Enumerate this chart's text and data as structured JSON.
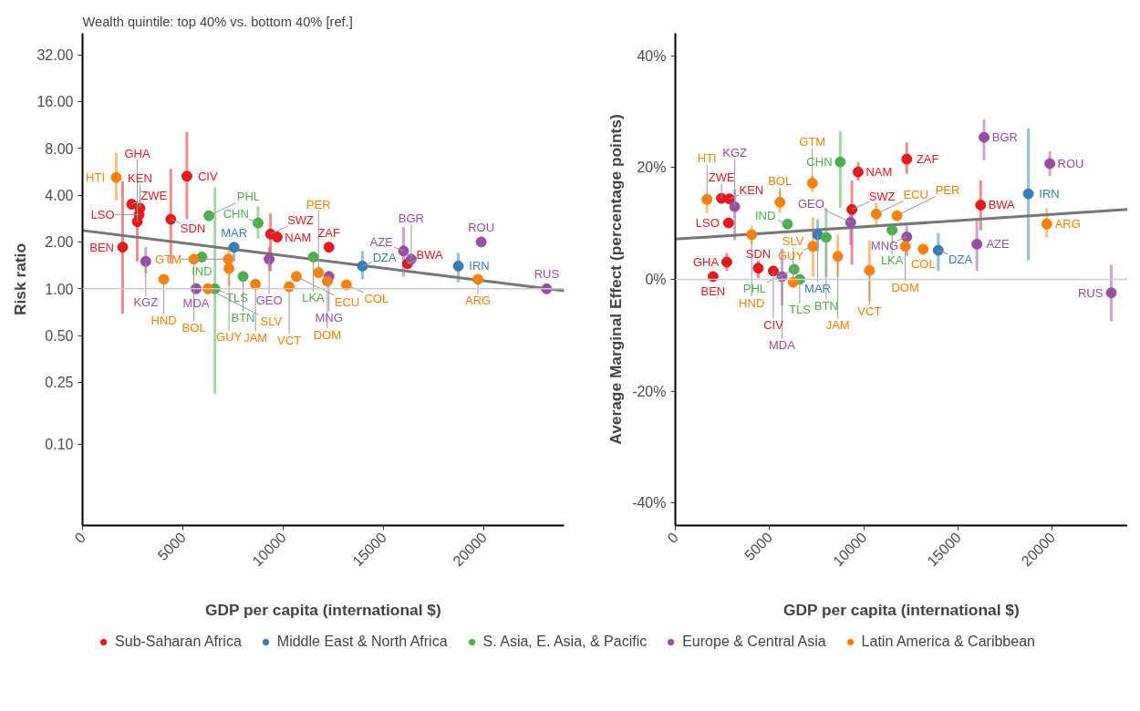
{
  "chart_data": [
    {
      "type": "scatter",
      "title": "Wealth quintile: top 40% vs. bottom 40% [ref.]",
      "xlabel": "GDP per capita (international $)",
      "ylabel": "Risk ratio",
      "log": "y",
      "marker": "circle",
      "legend": "bottom",
      "xlim": [
        0,
        24000
      ],
      "xticks": [
        0,
        5000,
        10000,
        15000,
        20000
      ],
      "ylim": [
        0.03,
        44
      ],
      "yticks": [
        {
          "value": 0.1,
          "label": "0.10"
        },
        {
          "value": 0.25,
          "label": "0.25"
        },
        {
          "value": 0.5,
          "label": "0.50"
        },
        {
          "value": 1,
          "label": "1.00"
        },
        {
          "value": 2,
          "label": "2.00"
        },
        {
          "value": 4,
          "label": "4.00"
        },
        {
          "value": 8,
          "label": "8.00"
        },
        {
          "value": 16,
          "label": "16.00"
        },
        {
          "value": 32,
          "label": "32.00"
        }
      ],
      "ref_lines": [
        {
          "axis": "y",
          "value": 1,
          "color": "#cccccc"
        }
      ],
      "series": [
        {
          "name": "Sub-Saharan Africa",
          "color": "#e41a1c",
          "x": [
            2450,
            2860,
            2820,
            2730,
            4400,
            2000,
            5200,
            9700,
            9370,
            12280,
            16200
          ],
          "values": [
            3.5,
            3.3,
            3.0,
            2.7,
            2.8,
            1.85,
            5.3,
            2.15,
            2.25,
            1.85,
            1.45
          ],
          "errors": [
            null,
            null,
            null,
            [
              1.5,
              3.5
            ],
            [
              1.45,
              5.9
            ],
            [
              0.69,
              4.9
            ],
            [
              2.8,
              10.2
            ],
            null,
            [
              1.3,
              3.05
            ],
            null,
            null
          ]
        },
        {
          "name": "Middle East & North Africa",
          "color": "#377eb8",
          "x": [
            7550,
            13950,
            18730
          ],
          "values": [
            1.85,
            1.4,
            1.4
          ],
          "errors": [
            [
              1.5,
              1.95
            ],
            [
              1.15,
              1.75
            ],
            [
              1.1,
              1.7
            ]
          ]
        },
        {
          "name": "S. Asia, E. Asia, & Pacific",
          "color": "#4daf4a",
          "x": [
            8750,
            6300,
            5950,
            6600,
            8000,
            11500
          ],
          "values": [
            2.65,
            2.95,
            1.6,
            1.0,
            1.2,
            1.6
          ],
          "errors": [
            [
              2.1,
              3.4
            ],
            null,
            null,
            [
              0.21,
              4.5
            ],
            null,
            null
          ]
        },
        {
          "name": "Europe & Central Asia",
          "color": "#984ea3",
          "x": [
            3150,
            5660,
            9300,
            12280,
            16000,
            16380,
            19870,
            23130
          ],
          "values": [
            1.5,
            1.0,
            1.55,
            1.2,
            1.75,
            1.55,
            2.0,
            1.0
          ],
          "errors": [
            [
              1.25,
              1.85
            ],
            null,
            [
              1.3,
              1.85
            ],
            null,
            [
              1.2,
              2.5
            ],
            null,
            null,
            null
          ]
        },
        {
          "name": "Latin America & Caribbean",
          "color": "#ff7f00",
          "x": [
            1680,
            5550,
            4050,
            6250,
            7270,
            7300,
            8620,
            10300,
            10660,
            11760,
            12200,
            13150,
            19710
          ],
          "values": [
            5.2,
            1.55,
            1.15,
            1.0,
            1.55,
            1.35,
            1.07,
            1.03,
            1.2,
            1.27,
            1.12,
            1.06,
            1.15
          ],
          "errors": [
            [
              3.7,
              7.5
            ],
            null,
            null,
            null,
            null,
            [
              1.05,
              1.9
            ],
            null,
            null,
            null,
            null,
            null,
            null,
            null
          ]
        },
        {
          "type": "line",
          "color": "#777777",
          "marker": "none",
          "x": [
            0,
            24000
          ],
          "values": [
            2.37,
            0.97
          ]
        }
      ],
      "annotations": [
        {
          "text": "ZWE",
          "x": 2450,
          "y": 3.5
        },
        {
          "text": "KEN",
          "x": 2860,
          "y": 3.3
        },
        {
          "text": "LSO",
          "x": 2820,
          "y": 3.0
        },
        {
          "text": "GHA",
          "x": 2730,
          "y": 2.7
        },
        {
          "text": "SDN",
          "x": 4400,
          "y": 2.8
        },
        {
          "text": "BEN",
          "x": 2000,
          "y": 1.85
        },
        {
          "text": "CIV",
          "x": 5200,
          "y": 5.3
        },
        {
          "text": "NAM",
          "x": 9700,
          "y": 2.15
        },
        {
          "text": "SWZ",
          "x": 9370,
          "y": 2.25
        },
        {
          "text": "ZAF",
          "x": 12280,
          "y": 1.85
        },
        {
          "text": "BWA",
          "x": 16200,
          "y": 1.45
        },
        {
          "text": "MAR",
          "x": 7550,
          "y": 1.85
        },
        {
          "text": "DZA",
          "x": 13950,
          "y": 1.4
        },
        {
          "text": "IRN",
          "x": 18730,
          "y": 1.4
        },
        {
          "text": "CHN",
          "x": 8750,
          "y": 2.65
        },
        {
          "text": "PHL",
          "x": 6300,
          "y": 2.95
        },
        {
          "text": "IND",
          "x": 5950,
          "y": 1.6
        },
        {
          "text": "TLS",
          "x": 6600,
          "y": 1.0
        },
        {
          "text": "BTN",
          "x": 8000,
          "y": 1.2
        },
        {
          "text": "LKA",
          "x": 11500,
          "y": 1.6
        },
        {
          "text": "KGZ",
          "x": 3150,
          "y": 1.5
        },
        {
          "text": "MDA",
          "x": 5660,
          "y": 1.0
        },
        {
          "text": "GEO",
          "x": 9300,
          "y": 1.55
        },
        {
          "text": "MNG",
          "x": 12280,
          "y": 1.2
        },
        {
          "text": "AZE",
          "x": 16000,
          "y": 1.75
        },
        {
          "text": "BGR",
          "x": 16380,
          "y": 1.55
        },
        {
          "text": "ROU",
          "x": 19870,
          "y": 2.0
        },
        {
          "text": "RUS",
          "x": 23130,
          "y": 1.0
        },
        {
          "text": "HTI",
          "x": 1680,
          "y": 5.2
        },
        {
          "text": "BOL",
          "x": 5550,
          "y": 1.55
        },
        {
          "text": "HND",
          "x": 4050,
          "y": 1.15
        },
        {
          "text": "SLV",
          "x": 6250,
          "y": 1.0
        },
        {
          "text": "GTM",
          "x": 7270,
          "y": 1.55
        },
        {
          "text": "GUY",
          "x": 7300,
          "y": 1.35
        },
        {
          "text": "JAM",
          "x": 8620,
          "y": 1.07
        },
        {
          "text": "VCT",
          "x": 10300,
          "y": 1.03
        },
        {
          "text": "ECU",
          "x": 10660,
          "y": 1.2
        },
        {
          "text": "PER",
          "x": 11760,
          "y": 1.27
        },
        {
          "text": "DOM",
          "x": 12200,
          "y": 1.12
        },
        {
          "text": "COL",
          "x": 13150,
          "y": 1.06
        },
        {
          "text": "ARG",
          "x": 19710,
          "y": 1.15
        }
      ]
    },
    {
      "type": "scatter",
      "xlabel": "GDP per capita (international $)",
      "ylabel": "Average Marginal Effect (percentage points)",
      "marker": "circle",
      "xlim": [
        0,
        24000
      ],
      "xticks": [
        0,
        5000,
        10000,
        15000,
        20000
      ],
      "ylim": [
        -44,
        44
      ],
      "yticks": [
        {
          "value": -40,
          "label": "-40%"
        },
        {
          "value": -20,
          "label": "-20%"
        },
        {
          "value": 0,
          "label": "0%"
        },
        {
          "value": 20,
          "label": "20%"
        },
        {
          "value": 40,
          "label": "40%"
        }
      ],
      "ref_lines": [
        {
          "axis": "y",
          "value": 0,
          "color": "#cccccc"
        }
      ],
      "series": [
        {
          "color": "#e41a1c",
          "x": [
            2450,
            2860,
            2820,
            2730,
            4400,
            2000,
            5200,
            9700,
            9370,
            12280,
            16200
          ],
          "values": [
            14.5,
            14.4,
            10.1,
            3.1,
            2.0,
            0.5,
            1.5,
            19.2,
            12.5,
            21.5,
            13.3
          ],
          "errors": [
            null,
            null,
            null,
            [
              1.5,
              4.7
            ],
            [
              0.2,
              3.4
            ],
            null,
            null,
            [
              17.7,
              21
            ],
            [
              2.6,
              17.7
            ],
            [
              18.9,
              24.5
            ],
            [
              8.8,
              17.7
            ]
          ]
        },
        {
          "color": "#377eb8",
          "x": [
            7550,
            13950,
            18730
          ],
          "values": [
            8.0,
            5.2,
            15.3
          ],
          "errors": [
            [
              5,
              10.7
            ],
            [
              1.5,
              8.3
            ],
            [
              3.4,
              27
            ]
          ]
        },
        {
          "color": "#4daf4a",
          "x": [
            8750,
            6300,
            5950,
            6600,
            8000,
            11500
          ],
          "values": [
            21,
            1.8,
            9.9,
            0.0,
            7.5,
            8.8
          ],
          "errors": [
            [
              12.8,
              26.5
            ],
            null,
            null,
            null,
            [
              0.5,
              12.8
            ],
            null
          ]
        },
        {
          "color": "#984ea3",
          "x": [
            3150,
            5660,
            9300,
            12280,
            16000,
            16380,
            19870,
            23130
          ],
          "values": [
            13,
            0.5,
            10.2,
            7.6,
            6.3,
            25.4,
            20.7,
            -2.4
          ],
          "errors": [
            [
              7,
              16.1
            ],
            [
              -4.7,
              5.5
            ],
            [
              6.2,
              12.8
            ],
            [
              4.2,
              9.6
            ],
            [
              1.5,
              10.7
            ],
            [
              21.3,
              28.6
            ],
            [
              18.5,
              22.9
            ],
            [
              -7.5,
              2.6
            ]
          ]
        },
        {
          "color": "#ff7f00",
          "x": [
            1680,
            5550,
            4050,
            6250,
            7270,
            7300,
            8620,
            10300,
            10660,
            11760,
            12200,
            13150,
            19710
          ],
          "values": [
            14.3,
            13.8,
            8.0,
            -0.5,
            17.2,
            5.9,
            4.1,
            1.6,
            11.7,
            11.4,
            5.9,
            5.4,
            9.9
          ],
          "errors": [
            [
              11.9,
              15.3
            ],
            [
              11.9,
              15.9
            ],
            [
              6.3,
              9.6
            ],
            null,
            [
              15.6,
              18.5
            ],
            [
              0.5,
              11.1
            ],
            [
              0.5,
              8
            ],
            [
              -3.9,
              7
            ],
            [
              9.9,
              13.7
            ],
            null,
            null,
            null,
            [
              7.5,
              12.7
            ]
          ]
        },
        {
          "type": "line",
          "color": "#777777",
          "marker": "none",
          "x": [
            0,
            24000
          ],
          "values": [
            7.2,
            12.5
          ]
        }
      ],
      "annotations": [
        {
          "text": "ZWE",
          "x": 2450,
          "y": 14.5
        },
        {
          "text": "KEN",
          "x": 2860,
          "y": 14.4
        },
        {
          "text": "LSO",
          "x": 2820,
          "y": 10.1
        },
        {
          "text": "GHA",
          "x": 2730,
          "y": 3.1
        },
        {
          "text": "SDN",
          "x": 4400,
          "y": 2.0
        },
        {
          "text": "BEN",
          "x": 2000,
          "y": 0.5
        },
        {
          "text": "CIV",
          "x": 5200,
          "y": 1.5
        },
        {
          "text": "NAM",
          "x": 9700,
          "y": 19.2
        },
        {
          "text": "SWZ",
          "x": 9370,
          "y": 12.5
        },
        {
          "text": "ZAF",
          "x": 12280,
          "y": 21.5
        },
        {
          "text": "BWA",
          "x": 16200,
          "y": 13.3
        },
        {
          "text": "MAR",
          "x": 7550,
          "y": 8.0
        },
        {
          "text": "DZA",
          "x": 13950,
          "y": 5.2
        },
        {
          "text": "IRN",
          "x": 18730,
          "y": 15.3
        },
        {
          "text": "CHN",
          "x": 8750,
          "y": 21
        },
        {
          "text": "PHL",
          "x": 6300,
          "y": 1.8
        },
        {
          "text": "IND",
          "x": 5950,
          "y": 9.9
        },
        {
          "text": "TLS",
          "x": 6600,
          "y": 0.0
        },
        {
          "text": "BTN",
          "x": 8000,
          "y": 7.5
        },
        {
          "text": "LKA",
          "x": 11500,
          "y": 8.8
        },
        {
          "text": "KGZ",
          "x": 3150,
          "y": 13
        },
        {
          "text": "MDA",
          "x": 5660,
          "y": 0.5
        },
        {
          "text": "GEO",
          "x": 9300,
          "y": 10.2
        },
        {
          "text": "MNG",
          "x": 12280,
          "y": 7.6
        },
        {
          "text": "AZE",
          "x": 16000,
          "y": 6.3
        },
        {
          "text": "BGR",
          "x": 16380,
          "y": 25.4
        },
        {
          "text": "ROU",
          "x": 19870,
          "y": 20.7
        },
        {
          "text": "RUS",
          "x": 23130,
          "y": -2.4
        },
        {
          "text": "HTI",
          "x": 1680,
          "y": 14.3
        },
        {
          "text": "BOL",
          "x": 5550,
          "y": 13.8
        },
        {
          "text": "HND",
          "x": 4050,
          "y": 8.0
        },
        {
          "text": "SLV",
          "x": 6250,
          "y": -0.5
        },
        {
          "text": "GTM",
          "x": 7270,
          "y": 17.2
        },
        {
          "text": "GUY",
          "x": 7300,
          "y": 5.9
        },
        {
          "text": "JAM",
          "x": 8620,
          "y": 4.1
        },
        {
          "text": "VCT",
          "x": 10300,
          "y": 1.6
        },
        {
          "text": "ECU",
          "x": 10660,
          "y": 11.7
        },
        {
          "text": "PER",
          "x": 11760,
          "y": 11.4
        },
        {
          "text": "DOM",
          "x": 12200,
          "y": 5.9
        },
        {
          "text": "COL",
          "x": 13150,
          "y": 5.4
        },
        {
          "text": "ARG",
          "x": 19710,
          "y": 9.9
        }
      ]
    }
  ]
}
